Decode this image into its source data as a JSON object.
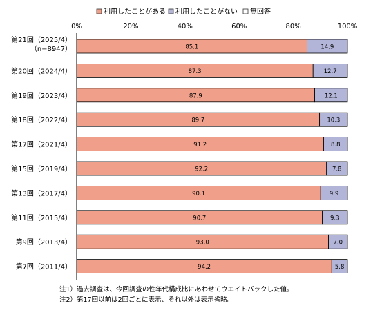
{
  "chart_data": {
    "type": "bar",
    "orientation": "horizontal",
    "stacked": true,
    "title": "",
    "xlabel": "",
    "ylabel": "",
    "xlim": [
      0,
      100
    ],
    "x_ticks": [
      "0%",
      "20%",
      "40%",
      "60%",
      "80%",
      "100%"
    ],
    "legend_position": "top",
    "grid": false,
    "categories": [
      [
        "第21回（2025/4）",
        "（n=8947）"
      ],
      [
        "第20回（2024/4）"
      ],
      [
        "第19回（2023/4）"
      ],
      [
        "第18回（2022/4）"
      ],
      [
        "第17回（2021/4）"
      ],
      [
        "第15回（2019/4）"
      ],
      [
        "第13回（2017/4）"
      ],
      [
        "第11回（2015/4）"
      ],
      [
        "第9回（2013/4）"
      ],
      [
        "第7回（2011/4）"
      ]
    ],
    "series": [
      {
        "name": "利用したことがある",
        "color": "#f0a08a",
        "values": [
          85.1,
          87.3,
          87.9,
          89.7,
          91.2,
          92.2,
          90.1,
          90.7,
          93.0,
          94.2
        ],
        "labels": [
          "85.1",
          "87.3",
          "87.9",
          "89.7",
          "91.2",
          "92.2",
          "90.1",
          "90.7",
          "93.0",
          "94.2"
        ]
      },
      {
        "name": "利用したことがない",
        "color": "#b2b5d8",
        "values": [
          14.9,
          12.7,
          12.1,
          10.3,
          8.8,
          7.8,
          9.9,
          9.3,
          7.0,
          5.8
        ],
        "labels": [
          "14.9",
          "12.7",
          "12.1",
          "10.3",
          "8.8",
          "7.8",
          "9.9",
          "9.3",
          "7.0",
          "5.8"
        ]
      },
      {
        "name": "無回答",
        "color": "#ffffff",
        "values": [
          0,
          0,
          0,
          0,
          0,
          0,
          0,
          0,
          0,
          0
        ],
        "labels": [
          "",
          "",
          "",
          "",
          "",
          "",
          "",
          "",
          "",
          ""
        ]
      }
    ]
  },
  "notes": [
    "注1）過去調査は、今回調査の性年代構成比にあわせてウエイトバックした値。",
    "注2）第17回以前は2回ごとに表示、それ以外は表示省略。"
  ]
}
